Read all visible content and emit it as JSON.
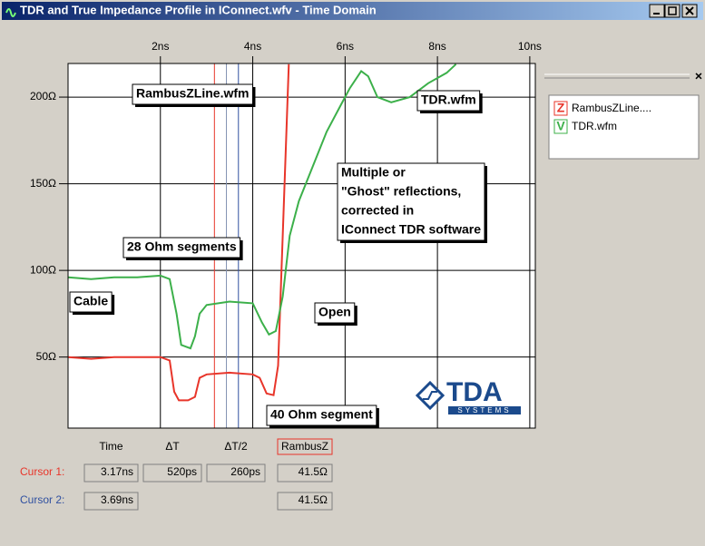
{
  "window": {
    "title": "TDR and True Impedance Profile in IConnect.wfv - Time Domain"
  },
  "chart_data": {
    "type": "line",
    "xlim": [
      0,
      10.12
    ],
    "ylim": [
      9,
      219.4
    ],
    "xticks": [
      {
        "value": 2,
        "label": "2ns"
      },
      {
        "value": 4,
        "label": "4ns"
      },
      {
        "value": 6,
        "label": "6ns"
      },
      {
        "value": 8,
        "label": "8ns"
      },
      {
        "value": 10,
        "label": "10ns"
      }
    ],
    "yticks": [
      {
        "value": 50,
        "label": "50Ω"
      },
      {
        "value": 100,
        "label": "100Ω"
      },
      {
        "value": 150,
        "label": "150Ω"
      },
      {
        "value": 200,
        "label": "200Ω"
      }
    ],
    "grid": true,
    "series": [
      {
        "name": "RambusZLine....",
        "symbol": "Z",
        "color": "#e8352a",
        "x": [
          0,
          0.5,
          1,
          1.5,
          2,
          2.2,
          2.3,
          2.4,
          2.6,
          2.75,
          2.85,
          3,
          3.5,
          4,
          4.15,
          4.3,
          4.45,
          4.55,
          4.65,
          4.78
        ],
        "values": [
          50,
          49,
          50,
          50,
          50,
          48,
          30,
          25,
          25,
          27,
          38,
          40,
          41,
          40,
          38,
          29,
          28,
          45,
          120,
          219
        ]
      },
      {
        "name": "TDR.wfm",
        "symbol": "V",
        "color": "#3cb04a",
        "x": [
          0,
          0.5,
          1,
          1.5,
          2,
          2.2,
          2.35,
          2.45,
          2.65,
          2.75,
          2.85,
          3,
          3.5,
          4,
          4.2,
          4.35,
          4.5,
          4.65,
          4.8,
          5,
          5.3,
          5.6,
          5.9,
          6.1,
          6.35,
          6.5,
          6.7,
          7,
          7.4,
          7.8,
          8.2,
          8.4
        ],
        "values": [
          96,
          95,
          96,
          96,
          97,
          95,
          75,
          57,
          55,
          62,
          75,
          80,
          82,
          81,
          70,
          63,
          65,
          85,
          120,
          140,
          160,
          180,
          195,
          205,
          215,
          212,
          200,
          197,
          200,
          208,
          214,
          219
        ]
      }
    ],
    "annotations": [
      {
        "lines": [
          "RambusZLine.wfm"
        ]
      },
      {
        "lines": [
          "TDR.wfm"
        ]
      },
      {
        "lines": [
          "Multiple or",
          "\"Ghost\" reflections,",
          "corrected in",
          "IConnect TDR software"
        ]
      },
      {
        "lines": [
          "28 Ohm segments"
        ]
      },
      {
        "lines": [
          "Cable"
        ]
      },
      {
        "lines": [
          "Open"
        ]
      },
      {
        "lines": [
          "40 Ohm segment"
        ]
      }
    ]
  },
  "logo": {
    "text": "TDA",
    "sub": "SYSTEMS"
  },
  "cursors": {
    "headers": [
      "Time",
      "ΔT",
      "ΔT/2",
      "RambusZ"
    ],
    "rows": [
      {
        "name": "Cursor 1:",
        "color": "#e8352a",
        "time": {
          "value": 3.17,
          "label": "3.17ns"
        },
        "dt": "520ps",
        "dt2": "260ps",
        "z": "41.5Ω"
      },
      {
        "name": "Cursor 2:",
        "color": "#3050a0",
        "time": {
          "value": 3.69,
          "label": "3.69ns"
        },
        "z": "41.5Ω"
      }
    ]
  }
}
